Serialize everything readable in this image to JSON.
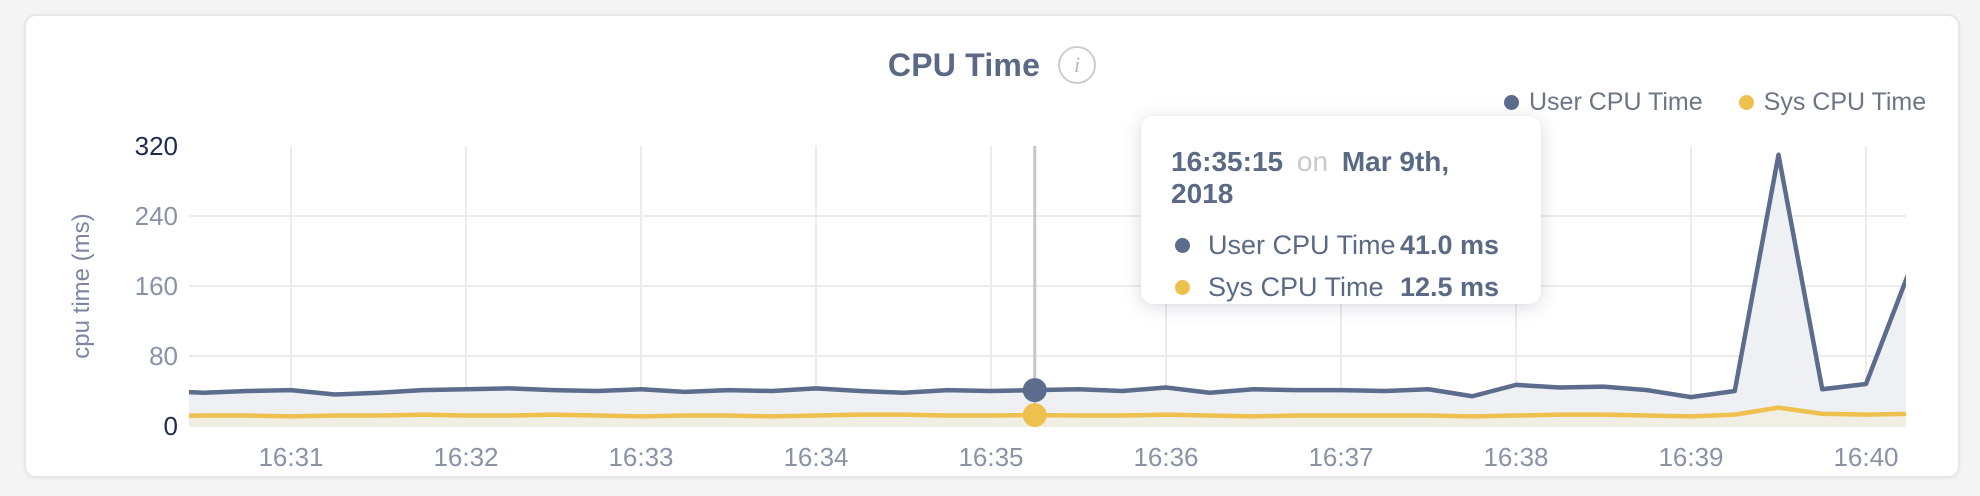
{
  "card": {
    "title": "CPU Time"
  },
  "icons": {
    "info": "i"
  },
  "legend": [
    {
      "label": "User CPU Time",
      "color": "#5c6c8c"
    },
    {
      "label": "Sys CPU Time",
      "color": "#eec04d"
    }
  ],
  "tooltip": {
    "time": "16:35:15",
    "connector": "on",
    "date": "Mar 9th, 2018",
    "rows": [
      {
        "label": "User CPU Time",
        "value": "41.0 ms",
        "color": "#5c6c8c"
      },
      {
        "label": "Sys CPU Time",
        "value": "12.5 ms",
        "color": "#eec04d"
      }
    ]
  },
  "colors": {
    "user_line": "#5c6c8c",
    "user_fill": "#eef0f4",
    "sys_line": "#eec04d",
    "sys_fill": "#f1eee3",
    "grid": "#ececec",
    "crosshair": "#c5c7cb",
    "axis_text": "#8a93a6",
    "axis_text_edge": "#1d2b4e"
  },
  "chart_data": {
    "type": "area",
    "title": "CPU Time",
    "xlabel": "",
    "ylabel": "cpu time (ms)",
    "ylim": [
      0,
      320
    ],
    "y_ticks": [
      0,
      80,
      160,
      240,
      320
    ],
    "x_ticks": [
      "16:31",
      "16:32",
      "16:33",
      "16:34",
      "16:35",
      "16:36",
      "16:37",
      "16:38",
      "16:39",
      "16:40"
    ],
    "grid": true,
    "legend_position": "top-right",
    "hover_index": 20,
    "x": [
      "16:30:15",
      "16:30:30",
      "16:30:45",
      "16:31:00",
      "16:31:15",
      "16:31:30",
      "16:31:45",
      "16:32:00",
      "16:32:15",
      "16:32:30",
      "16:32:45",
      "16:33:00",
      "16:33:15",
      "16:33:30",
      "16:33:45",
      "16:34:00",
      "16:34:15",
      "16:34:30",
      "16:34:45",
      "16:35:00",
      "16:35:15",
      "16:35:30",
      "16:35:45",
      "16:36:00",
      "16:36:15",
      "16:36:30",
      "16:36:45",
      "16:37:00",
      "16:37:15",
      "16:37:30",
      "16:37:45",
      "16:38:00",
      "16:38:15",
      "16:38:30",
      "16:38:45",
      "16:39:00",
      "16:39:15",
      "16:39:30",
      "16:39:45",
      "16:40:00",
      "16:40:15"
    ],
    "series": [
      {
        "name": "User CPU Time",
        "color": "#5c6c8c",
        "fill": "#eef0f4",
        "values": [
          40,
          38,
          40,
          41,
          36,
          38,
          41,
          42,
          43,
          41,
          40,
          42,
          39,
          41,
          40,
          43,
          40,
          38,
          41,
          40,
          41,
          42,
          40,
          44,
          38,
          42,
          41,
          41,
          40,
          42,
          34,
          47,
          44,
          45,
          41,
          33,
          40,
          310,
          42,
          48,
          178
        ]
      },
      {
        "name": "Sys CPU Time",
        "color": "#eec04d",
        "fill": "#f1eee3",
        "values": [
          11,
          12,
          12,
          11,
          12,
          12,
          13,
          12,
          12,
          13,
          12,
          11,
          12,
          12,
          11,
          12,
          13,
          13,
          12,
          12,
          12.5,
          12,
          12,
          13,
          12,
          11,
          12,
          12,
          12,
          12,
          11,
          12,
          13,
          13,
          12,
          11,
          13,
          21,
          14,
          13,
          14
        ]
      }
    ]
  }
}
